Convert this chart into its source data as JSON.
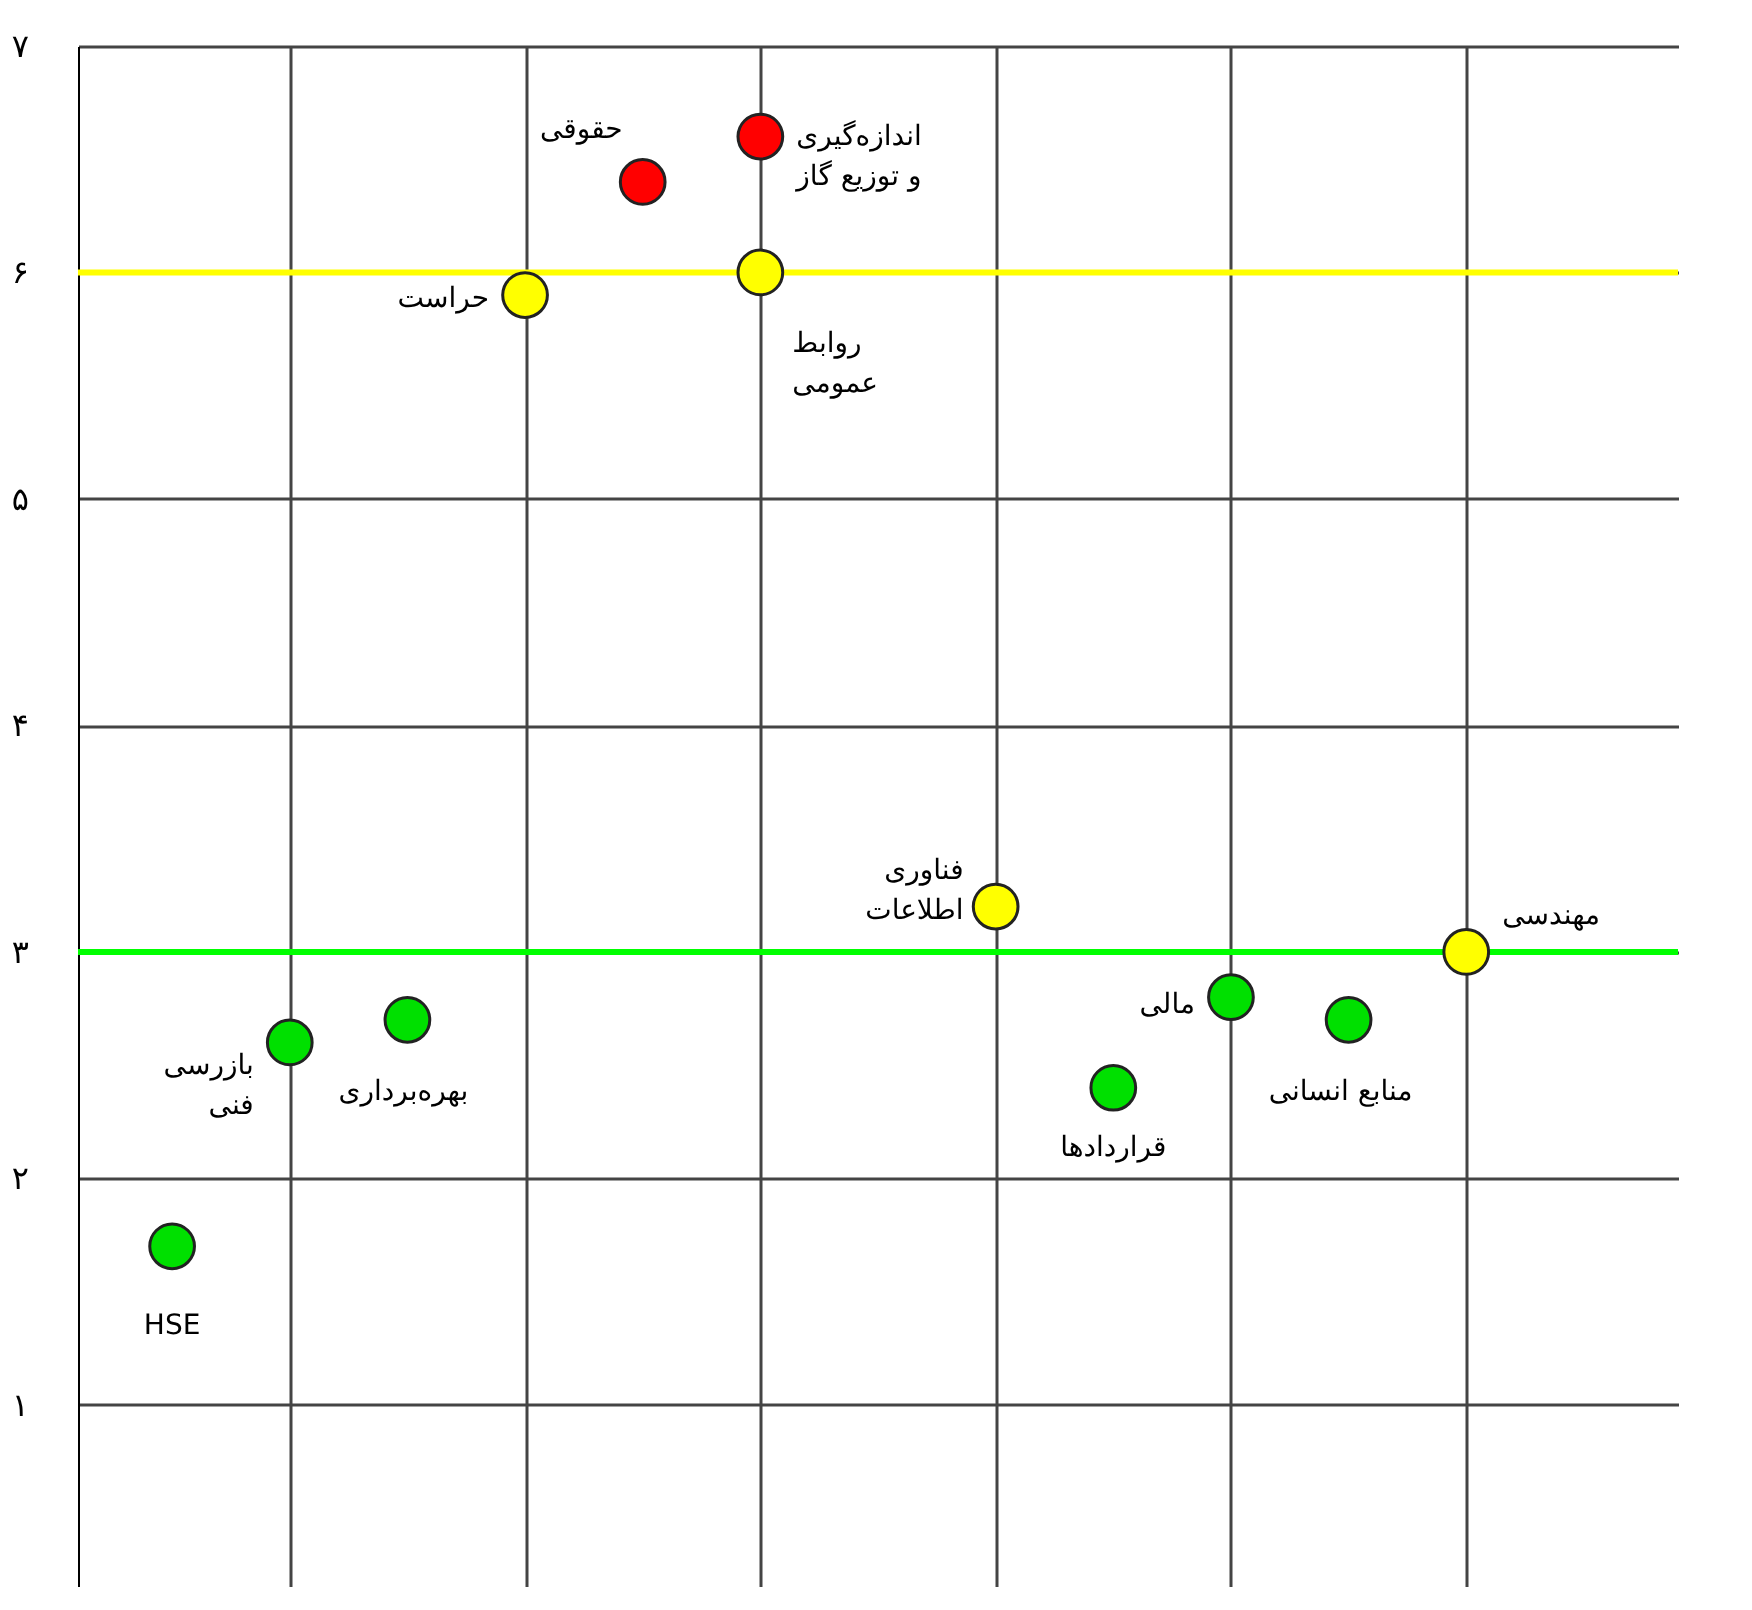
{
  "chart_data": {
    "type": "scatter",
    "categories": [
      null,
      null,
      null,
      null,
      null,
      null,
      null,
      null,
      null,
      null,
      null,
      null,
      null
    ],
    "ylim": [
      0.2,
      7
    ],
    "yticks": [
      {
        "value": 1,
        "label": "۱"
      },
      {
        "value": 2,
        "label": "۲"
      },
      {
        "value": 3,
        "label": "۳"
      },
      {
        "value": 4,
        "label": "۴"
      },
      {
        "value": 5,
        "label": "۵"
      },
      {
        "value": 6,
        "label": "۶"
      },
      {
        "value": 7,
        "label": "۷"
      }
    ],
    "tick_labels": "y",
    "grid": true,
    "marker": "circle",
    "series": [
      {
        "color": "#ff0000",
        "values": [
          null,
          null,
          null,
          null,
          6.4,
          6.6,
          null,
          null,
          null,
          null,
          null,
          null,
          null
        ],
        "value_labels": [
          null,
          null,
          null,
          null,
          "حقوقی",
          "اندازه‌گیری\nو توزیع گاز",
          null,
          null,
          null,
          null,
          null,
          null,
          null
        ]
      },
      {
        "color": "#ffff00",
        "values": [
          null,
          null,
          null,
          5.9,
          null,
          6.0,
          null,
          3.2,
          null,
          null,
          null,
          3.0,
          null
        ],
        "value_labels": [
          null,
          null,
          null,
          "حراست",
          null,
          "روابط\nعمومی",
          null,
          "فناوری\nاطلاعات",
          null,
          null,
          null,
          "مهندسی",
          null
        ]
      },
      {
        "color": "#00e000",
        "values": [
          1.7,
          2.6,
          2.7,
          null,
          null,
          null,
          null,
          null,
          2.4,
          2.8,
          2.7,
          null,
          null
        ],
        "value_labels": [
          "HSE",
          "بازرسی\nفنی",
          "بهره‌برداری",
          null,
          null,
          null,
          null,
          null,
          "قراردادها",
          "مالی",
          "منابع انسانی",
          null,
          null
        ]
      }
    ],
    "ref_lines": [
      {
        "axis": "y",
        "value": 6,
        "label": null,
        "color": "#ffff00"
      },
      {
        "axis": "y",
        "value": 3,
        "label": null,
        "color": "#00ff00"
      }
    ]
  }
}
